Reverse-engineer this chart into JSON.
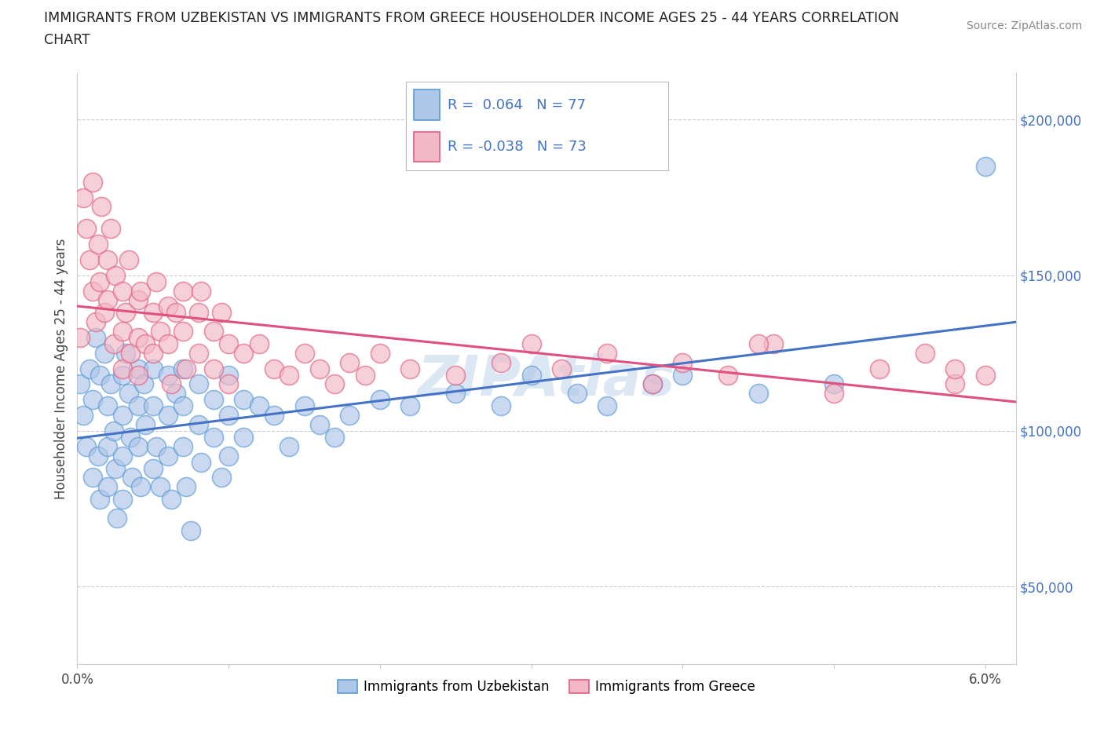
{
  "title_line1": "IMMIGRANTS FROM UZBEKISTAN VS IMMIGRANTS FROM GREECE HOUSEHOLDER INCOME AGES 25 - 44 YEARS CORRELATION",
  "title_line2": "CHART",
  "source": "Source: ZipAtlas.com",
  "ylabel": "Householder Income Ages 25 - 44 years",
  "xlim": [
    0.0,
    0.062
  ],
  "ylim": [
    25000,
    215000
  ],
  "yticks": [
    50000,
    100000,
    150000,
    200000
  ],
  "ytick_labels": [
    "$50,000",
    "$100,000",
    "$150,000",
    "$200,000"
  ],
  "xticks": [
    0.0,
    0.01,
    0.02,
    0.03,
    0.04,
    0.05,
    0.06
  ],
  "xtick_labels": [
    "0.0%",
    "",
    "",
    "",
    "",
    "",
    "6.0%"
  ],
  "R_uzbekistan": 0.064,
  "N_uzbekistan": 77,
  "R_greece": -0.038,
  "N_greece": 73,
  "color_uzbekistan": "#aec6e8",
  "color_greece": "#f2b8c6",
  "edge_color_uzbekistan": "#5b9bd5",
  "edge_color_greece": "#e06080",
  "line_color_uzbekistan": "#4472c4",
  "line_color_greece": "#e05080",
  "watermark": "ZIPAtlas",
  "uzbekistan_x": [
    0.0002,
    0.0004,
    0.0006,
    0.0008,
    0.001,
    0.001,
    0.0012,
    0.0014,
    0.0015,
    0.0015,
    0.0018,
    0.002,
    0.002,
    0.002,
    0.0022,
    0.0024,
    0.0025,
    0.0026,
    0.003,
    0.003,
    0.003,
    0.003,
    0.0032,
    0.0034,
    0.0035,
    0.0036,
    0.004,
    0.004,
    0.004,
    0.0042,
    0.0044,
    0.0045,
    0.005,
    0.005,
    0.005,
    0.0052,
    0.0055,
    0.006,
    0.006,
    0.006,
    0.0062,
    0.0065,
    0.007,
    0.007,
    0.007,
    0.0072,
    0.0075,
    0.008,
    0.008,
    0.0082,
    0.009,
    0.009,
    0.0095,
    0.01,
    0.01,
    0.01,
    0.011,
    0.011,
    0.012,
    0.013,
    0.014,
    0.015,
    0.016,
    0.017,
    0.018,
    0.02,
    0.022,
    0.025,
    0.028,
    0.03,
    0.033,
    0.035,
    0.038,
    0.04,
    0.045,
    0.05,
    0.06
  ],
  "uzbekistan_y": [
    115000,
    105000,
    95000,
    120000,
    110000,
    85000,
    130000,
    92000,
    118000,
    78000,
    125000,
    108000,
    95000,
    82000,
    115000,
    100000,
    88000,
    72000,
    118000,
    105000,
    92000,
    78000,
    125000,
    112000,
    98000,
    85000,
    120000,
    108000,
    95000,
    82000,
    115000,
    102000,
    88000,
    120000,
    108000,
    95000,
    82000,
    118000,
    105000,
    92000,
    78000,
    112000,
    120000,
    108000,
    95000,
    82000,
    68000,
    115000,
    102000,
    90000,
    110000,
    98000,
    85000,
    118000,
    105000,
    92000,
    110000,
    98000,
    108000,
    105000,
    95000,
    108000,
    102000,
    98000,
    105000,
    110000,
    108000,
    112000,
    108000,
    118000,
    112000,
    108000,
    115000,
    118000,
    112000,
    115000,
    185000
  ],
  "greece_x": [
    0.0002,
    0.0004,
    0.0006,
    0.0008,
    0.001,
    0.001,
    0.0012,
    0.0014,
    0.0015,
    0.0016,
    0.0018,
    0.002,
    0.002,
    0.0022,
    0.0024,
    0.0025,
    0.003,
    0.003,
    0.003,
    0.0032,
    0.0034,
    0.0035,
    0.004,
    0.004,
    0.004,
    0.0042,
    0.0045,
    0.005,
    0.005,
    0.0052,
    0.0055,
    0.006,
    0.006,
    0.0062,
    0.0065,
    0.007,
    0.007,
    0.0072,
    0.008,
    0.008,
    0.0082,
    0.009,
    0.009,
    0.0095,
    0.01,
    0.01,
    0.011,
    0.012,
    0.013,
    0.014,
    0.015,
    0.016,
    0.017,
    0.018,
    0.019,
    0.02,
    0.022,
    0.025,
    0.028,
    0.03,
    0.032,
    0.035,
    0.038,
    0.04,
    0.043,
    0.046,
    0.05,
    0.053,
    0.056,
    0.058,
    0.06,
    0.058,
    0.045
  ],
  "greece_y": [
    130000,
    175000,
    165000,
    155000,
    145000,
    180000,
    135000,
    160000,
    148000,
    172000,
    138000,
    155000,
    142000,
    165000,
    128000,
    150000,
    145000,
    132000,
    120000,
    138000,
    155000,
    125000,
    142000,
    130000,
    118000,
    145000,
    128000,
    138000,
    125000,
    148000,
    132000,
    140000,
    128000,
    115000,
    138000,
    145000,
    132000,
    120000,
    138000,
    125000,
    145000,
    132000,
    120000,
    138000,
    128000,
    115000,
    125000,
    128000,
    120000,
    118000,
    125000,
    120000,
    115000,
    122000,
    118000,
    125000,
    120000,
    118000,
    122000,
    128000,
    120000,
    125000,
    115000,
    122000,
    118000,
    128000,
    112000,
    120000,
    125000,
    115000,
    118000,
    120000,
    128000
  ]
}
